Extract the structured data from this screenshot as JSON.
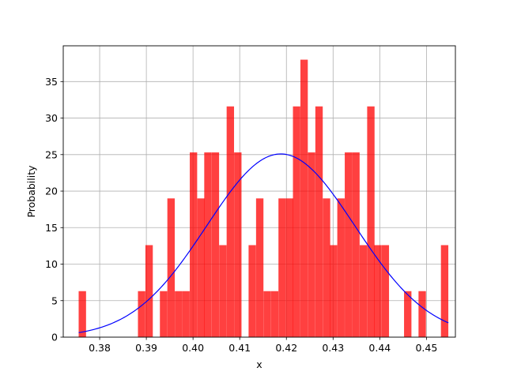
{
  "chart_data": {
    "type": "bar",
    "subtype": "histogram-with-density-curve",
    "xlabel": "x",
    "ylabel": "Probability",
    "xlim": [
      0.3722,
      0.4562
    ],
    "ylim": [
      0,
      39.9
    ],
    "grid": true,
    "bin_width": 0.001583,
    "bins": [
      {
        "x0": 0.3755,
        "h": 6.3
      },
      {
        "x0": 0.3882,
        "h": 6.3
      },
      {
        "x0": 0.3898,
        "h": 12.6
      },
      {
        "x0": 0.3929,
        "h": 6.3
      },
      {
        "x0": 0.3945,
        "h": 19.0
      },
      {
        "x0": 0.3961,
        "h": 6.3
      },
      {
        "x0": 0.3977,
        "h": 6.3
      },
      {
        "x0": 0.3993,
        "h": 25.3
      },
      {
        "x0": 0.4009,
        "h": 19.0
      },
      {
        "x0": 0.4024,
        "h": 25.3
      },
      {
        "x0": 0.404,
        "h": 25.3
      },
      {
        "x0": 0.4056,
        "h": 12.6
      },
      {
        "x0": 0.4072,
        "h": 31.6
      },
      {
        "x0": 0.4088,
        "h": 25.3
      },
      {
        "x0": 0.4119,
        "h": 12.6
      },
      {
        "x0": 0.4135,
        "h": 19.0
      },
      {
        "x0": 0.4151,
        "h": 6.3
      },
      {
        "x0": 0.4167,
        "h": 6.3
      },
      {
        "x0": 0.4183,
        "h": 19.0
      },
      {
        "x0": 0.4199,
        "h": 19.0
      },
      {
        "x0": 0.4214,
        "h": 31.6
      },
      {
        "x0": 0.423,
        "h": 38.0
      },
      {
        "x0": 0.4246,
        "h": 25.3
      },
      {
        "x0": 0.4262,
        "h": 31.6
      },
      {
        "x0": 0.4278,
        "h": 19.0
      },
      {
        "x0": 0.4293,
        "h": 12.6
      },
      {
        "x0": 0.4309,
        "h": 19.0
      },
      {
        "x0": 0.4325,
        "h": 25.3
      },
      {
        "x0": 0.4341,
        "h": 25.3
      },
      {
        "x0": 0.4357,
        "h": 12.6
      },
      {
        "x0": 0.4373,
        "h": 31.6
      },
      {
        "x0": 0.4388,
        "h": 12.6
      },
      {
        "x0": 0.4404,
        "h": 12.6
      },
      {
        "x0": 0.4452,
        "h": 6.3
      },
      {
        "x0": 0.4483,
        "h": 6.3
      },
      {
        "x0": 0.4531,
        "h": 12.6
      }
    ],
    "density_curve": {
      "type": "normal",
      "mean": 0.4188,
      "std": 0.0159,
      "x_range": [
        0.3755,
        0.4547
      ],
      "color": "#0000ff"
    },
    "bar_color": "#ff0000",
    "bar_alpha": 0.75,
    "x_ticks": [
      0.38,
      0.39,
      0.4,
      0.41,
      0.42,
      0.43,
      0.44,
      0.45
    ],
    "x_tick_labels": [
      "0.38",
      "0.39",
      "0.40",
      "0.41",
      "0.42",
      "0.43",
      "0.44",
      "0.45"
    ],
    "y_ticks": [
      0,
      5,
      10,
      15,
      20,
      25,
      30,
      35
    ],
    "y_tick_labels": [
      "0",
      "5",
      "10",
      "15",
      "20",
      "25",
      "30",
      "35"
    ]
  }
}
